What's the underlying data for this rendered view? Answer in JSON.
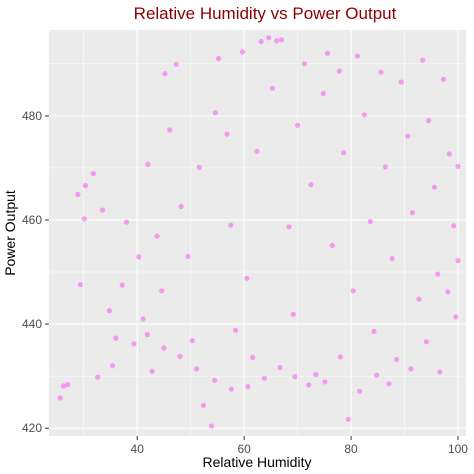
{
  "chart_data": {
    "type": "scatter",
    "title": "Relative Humidity vs Power Output",
    "xlabel": "Relative Humidity",
    "ylabel": "Power Output",
    "xlim": [
      23.5,
      101.5
    ],
    "ylim": [
      418.5,
      496.5
    ],
    "x_ticks": [
      40,
      60,
      80,
      100
    ],
    "y_ticks": [
      420,
      440,
      460,
      480
    ],
    "grid": true,
    "point_color": "#ff00ff",
    "point_opacity": 0.35,
    "panel_background": "#ebebeb",
    "grid_color": "#ffffff",
    "points": [
      [
        25.6,
        425.8
      ],
      [
        26.2,
        428.1
      ],
      [
        27.0,
        428.4
      ],
      [
        28.9,
        464.9
      ],
      [
        30.1,
        460.2
      ],
      [
        30.3,
        466.6
      ],
      [
        31.8,
        468.9
      ],
      [
        29.4,
        447.6
      ],
      [
        32.6,
        429.8
      ],
      [
        33.5,
        461.9
      ],
      [
        34.8,
        442.6
      ],
      [
        35.4,
        432.0
      ],
      [
        36.0,
        437.3
      ],
      [
        37.2,
        447.5
      ],
      [
        38.0,
        459.6
      ],
      [
        39.4,
        436.2
      ],
      [
        40.3,
        452.9
      ],
      [
        41.1,
        441.0
      ],
      [
        42.0,
        470.7
      ],
      [
        42.8,
        430.9
      ],
      [
        43.7,
        456.9
      ],
      [
        44.6,
        446.4
      ],
      [
        45.2,
        488.1
      ],
      [
        46.1,
        477.3
      ],
      [
        47.3,
        489.9
      ],
      [
        48.2,
        462.6
      ],
      [
        49.5,
        453.0
      ],
      [
        50.3,
        436.8
      ],
      [
        51.6,
        470.1
      ],
      [
        52.4,
        424.4
      ],
      [
        53.9,
        420.4
      ],
      [
        54.6,
        480.6
      ],
      [
        55.2,
        491.0
      ],
      [
        56.8,
        476.5
      ],
      [
        57.5,
        459.0
      ],
      [
        58.4,
        438.8
      ],
      [
        59.7,
        492.3
      ],
      [
        60.5,
        448.8
      ],
      [
        61.6,
        433.6
      ],
      [
        62.4,
        473.2
      ],
      [
        63.2,
        494.3
      ],
      [
        64.6,
        495.0
      ],
      [
        65.3,
        485.3
      ],
      [
        66.1,
        494.4
      ],
      [
        67.0,
        494.6
      ],
      [
        68.4,
        458.7
      ],
      [
        69.2,
        441.9
      ],
      [
        70.0,
        478.2
      ],
      [
        71.3,
        490.0
      ],
      [
        72.5,
        466.8
      ],
      [
        73.4,
        430.3
      ],
      [
        74.8,
        484.3
      ],
      [
        75.6,
        492.0
      ],
      [
        76.5,
        455.1
      ],
      [
        77.8,
        488.6
      ],
      [
        78.6,
        472.9
      ],
      [
        79.5,
        421.7
      ],
      [
        80.4,
        446.4
      ],
      [
        81.2,
        491.5
      ],
      [
        82.5,
        480.2
      ],
      [
        83.6,
        459.7
      ],
      [
        84.3,
        438.6
      ],
      [
        85.6,
        488.4
      ],
      [
        86.4,
        470.2
      ],
      [
        87.7,
        452.6
      ],
      [
        88.5,
        433.2
      ],
      [
        89.4,
        486.5
      ],
      [
        90.6,
        476.1
      ],
      [
        91.5,
        461.4
      ],
      [
        92.7,
        444.8
      ],
      [
        93.4,
        490.7
      ],
      [
        94.5,
        479.1
      ],
      [
        95.6,
        466.3
      ],
      [
        96.2,
        449.6
      ],
      [
        97.3,
        487.0
      ],
      [
        98.4,
        472.7
      ],
      [
        99.2,
        458.9
      ],
      [
        99.6,
        441.4
      ],
      [
        100.0,
        470.3
      ],
      [
        100.0,
        452.2
      ],
      [
        98.1,
        446.2
      ],
      [
        96.6,
        430.8
      ],
      [
        94.1,
        436.6
      ],
      [
        91.2,
        431.4
      ],
      [
        87.1,
        428.5
      ],
      [
        84.8,
        430.2
      ],
      [
        81.6,
        427.1
      ],
      [
        78.0,
        433.7
      ],
      [
        75.1,
        428.9
      ],
      [
        72.1,
        428.3
      ],
      [
        69.5,
        429.9
      ],
      [
        66.7,
        431.7
      ],
      [
        63.8,
        429.6
      ],
      [
        60.7,
        428.0
      ],
      [
        57.6,
        427.5
      ],
      [
        54.5,
        429.2
      ],
      [
        51.1,
        431.4
      ],
      [
        48.0,
        433.8
      ],
      [
        45.0,
        435.4
      ],
      [
        41.9,
        438.0
      ]
    ]
  }
}
